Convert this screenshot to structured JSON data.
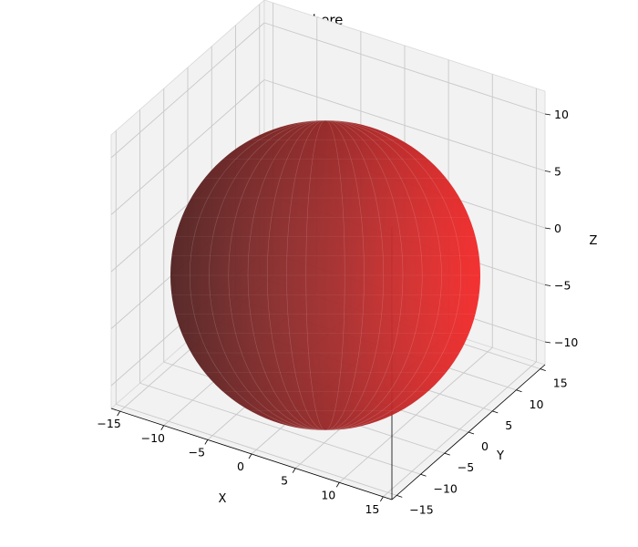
{
  "chart_data": {
    "type": "3d-surface",
    "title": "Sphere",
    "xlabel": "X",
    "ylabel": "Y",
    "zlabel": "Z",
    "x_ticks": [
      "−15",
      "−10",
      "−5",
      "0",
      "5",
      "10",
      "15"
    ],
    "y_ticks": [
      "−15",
      "−10",
      "−5",
      "0",
      "5",
      "10",
      "15"
    ],
    "z_ticks": [
      "−10",
      "−5",
      "0",
      "5",
      "10"
    ],
    "xlim": [
      -16,
      16
    ],
    "ylim": [
      -16,
      16
    ],
    "zlim": [
      -12,
      12
    ],
    "grid": true,
    "surface": {
      "shape": "sphere",
      "center": [
        0,
        0,
        0
      ],
      "radius": 12,
      "color": "#ff2020",
      "shadow_color": "#5a2323"
    }
  },
  "colors": {
    "pane": "#f2f2f2",
    "pane_edge": "#d8d8d8",
    "grid": "#c8c8c8"
  }
}
